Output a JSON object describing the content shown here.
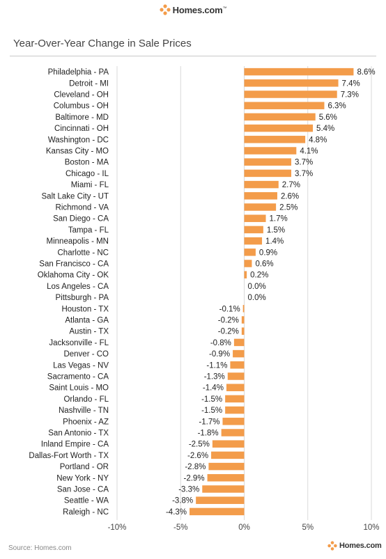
{
  "header": {
    "brand": "Homes.com",
    "tm": "™"
  },
  "chart_data": {
    "type": "bar",
    "orientation": "horizontal",
    "title": "Year-Over-Year Change in Sale Prices",
    "xlabel": "",
    "ylabel": "",
    "xlim": [
      -10,
      10
    ],
    "xticks": [
      -10,
      -5,
      0,
      5,
      10
    ],
    "grid": true,
    "bar_color": "#F39C4A",
    "categories": [
      "Philadelphia - PA",
      "Detroit - MI",
      "Cleveland - OH",
      "Columbus - OH",
      "Baltimore - MD",
      "Cincinnati - OH",
      "Washington - DC",
      "Kansas City - MO",
      "Boston - MA",
      "Chicago - IL",
      "Miami - FL",
      "Salt Lake City - UT",
      "Richmond - VA",
      "San Diego - CA",
      "Tampa - FL",
      "Minneapolis - MN",
      "Charlotte - NC",
      "San Francisco - CA",
      "Oklahoma City - OK",
      "Los Angeles - CA",
      "Pittsburgh - PA",
      "Houston - TX",
      "Atlanta - GA",
      "Austin - TX",
      "Jacksonville - FL",
      "Denver - CO",
      "Las Vegas - NV",
      "Sacramento - CA",
      "Saint Louis - MO",
      "Orlando - FL",
      "Nashville - TN",
      "Phoenix - AZ",
      "San Antonio - TX",
      "Inland Empire - CA",
      "Dallas-Fort Worth - TX",
      "Portland - OR",
      "New York - NY",
      "San Jose - CA",
      "Seattle - WA",
      "Raleigh - NC"
    ],
    "values": [
      8.6,
      7.4,
      7.3,
      6.3,
      5.6,
      5.4,
      4.8,
      4.1,
      3.7,
      3.7,
      2.7,
      2.6,
      2.5,
      1.7,
      1.5,
      1.4,
      0.9,
      0.6,
      0.2,
      0.0,
      0.0,
      -0.1,
      -0.2,
      -0.2,
      -0.8,
      -0.9,
      -1.1,
      -1.3,
      -1.4,
      -1.5,
      -1.5,
      -1.7,
      -1.8,
      -2.5,
      -2.6,
      -2.8,
      -2.9,
      -3.3,
      -3.8,
      -4.3
    ]
  },
  "footer": {
    "source": "Source: Homes.com",
    "brand": "Homes.com"
  }
}
